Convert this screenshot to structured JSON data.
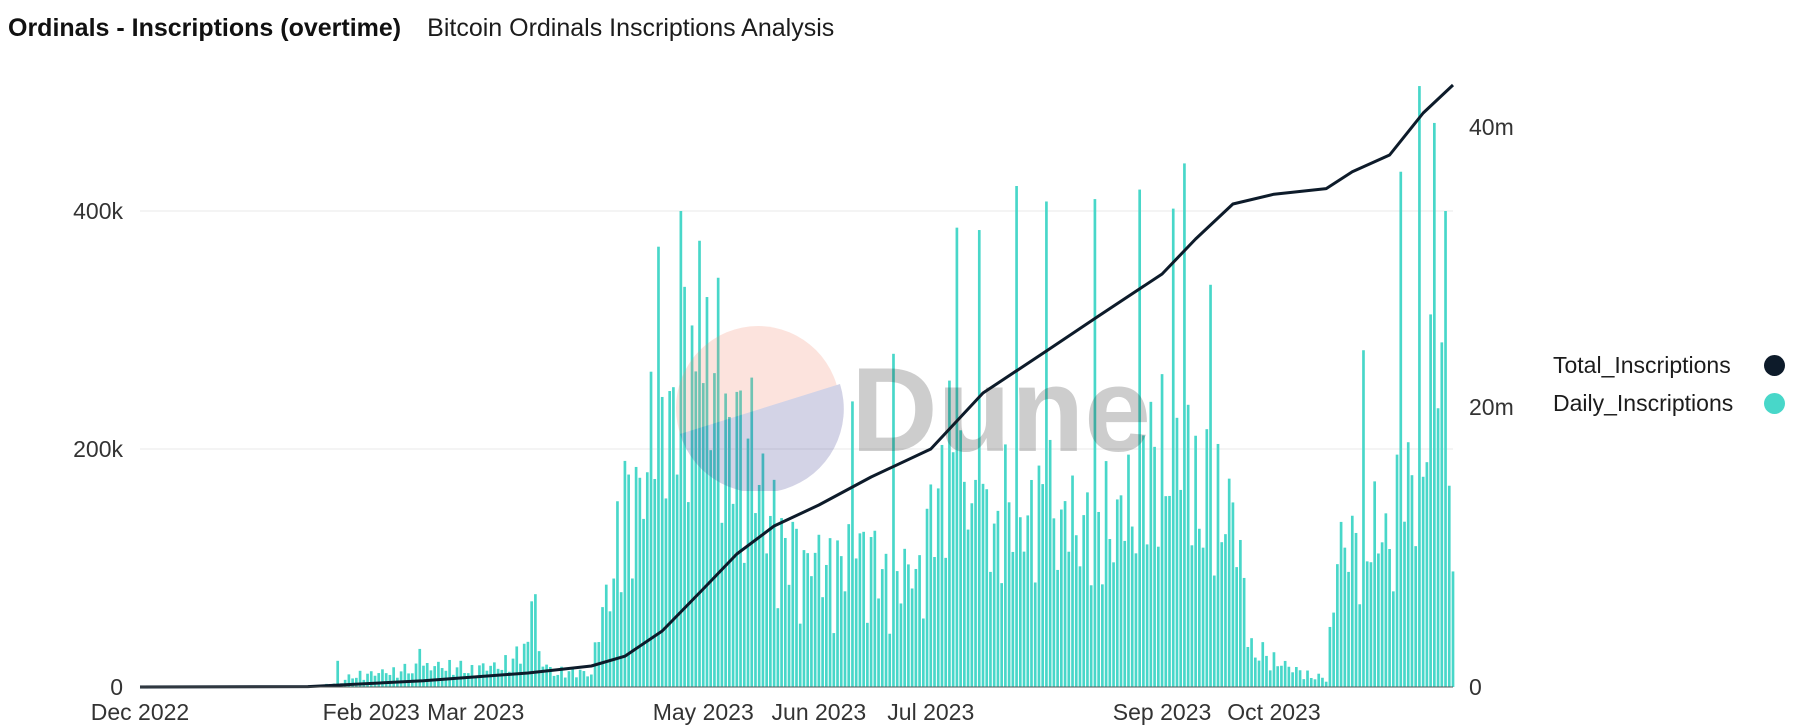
{
  "header": {
    "title": "Ordinals - Inscriptions (overtime)",
    "subtitle": "Bitcoin Ordinals Inscriptions Analysis"
  },
  "watermark": {
    "text": "Dune"
  },
  "colors": {
    "bars": "#48d7c9",
    "line": "#0d1b2a",
    "grid": "#e8e8e8",
    "axis_text": "#333333"
  },
  "legend": {
    "items": [
      {
        "label": "Total_Inscriptions",
        "color": "#0d1b2a"
      },
      {
        "label": "Daily_Inscriptions",
        "color": "#48d7c9"
      }
    ]
  },
  "chart_data": {
    "type": "bar",
    "x_range": [
      "2022-12-01",
      "2023-11-18"
    ],
    "x_ticks": [
      {
        "date": "2022-12-01",
        "label": "Dec 2022"
      },
      {
        "date": "2023-02-01",
        "label": "Feb 2023"
      },
      {
        "date": "2023-03-01",
        "label": "Mar 2023"
      },
      {
        "date": "2023-05-01",
        "label": "May 2023"
      },
      {
        "date": "2023-06-01",
        "label": "Jun 2023"
      },
      {
        "date": "2023-07-01",
        "label": "Jul 2023"
      },
      {
        "date": "2023-09-01",
        "label": "Sep 2023"
      },
      {
        "date": "2023-10-01",
        "label": "Oct 2023"
      }
    ],
    "y_left": {
      "ticks": [
        0,
        200000,
        400000
      ],
      "tick_labels": [
        "0",
        "200k",
        "400k"
      ],
      "range": [
        0,
        500000
      ]
    },
    "y_right": {
      "ticks": [
        0,
        20000000,
        40000000
      ],
      "tick_labels": [
        "0",
        "20m",
        "40m"
      ],
      "range": [
        0,
        42500000
      ]
    },
    "grid": true,
    "legend_position": "right",
    "series": [
      {
        "name": "Daily_Inscriptions",
        "type": "bar",
        "axis": "left",
        "keyframes": [
          [
            "2022-12-01",
            0
          ],
          [
            "2023-01-15",
            0
          ],
          [
            "2023-01-21",
            3000
          ],
          [
            "2023-01-28",
            12000
          ],
          [
            "2023-02-05",
            15000
          ],
          [
            "2023-02-20",
            22000
          ],
          [
            "2023-03-01",
            18000
          ],
          [
            "2023-03-10",
            25000
          ],
          [
            "2023-03-15",
            40000
          ],
          [
            "2023-03-22",
            15000
          ],
          [
            "2023-04-01",
            15000
          ],
          [
            "2023-04-05",
            100000
          ],
          [
            "2023-04-12",
            180000
          ],
          [
            "2023-04-20",
            300000
          ],
          [
            "2023-04-27",
            330000
          ],
          [
            "2023-05-04",
            310000
          ],
          [
            "2023-05-12",
            240000
          ],
          [
            "2023-05-20",
            160000
          ],
          [
            "2023-05-28",
            130000
          ],
          [
            "2023-06-05",
            120000
          ],
          [
            "2023-06-12",
            150000
          ],
          [
            "2023-06-20",
            110000
          ],
          [
            "2023-06-28",
            120000
          ],
          [
            "2023-07-05",
            240000
          ],
          [
            "2023-07-15",
            170000
          ],
          [
            "2023-07-25",
            180000
          ],
          [
            "2023-08-05",
            180000
          ],
          [
            "2023-08-15",
            160000
          ],
          [
            "2023-08-25",
            200000
          ],
          [
            "2023-09-05",
            260000
          ],
          [
            "2023-09-12",
            200000
          ],
          [
            "2023-09-20",
            180000
          ],
          [
            "2023-09-25",
            40000
          ],
          [
            "2023-10-05",
            20000
          ],
          [
            "2023-10-12",
            10000
          ],
          [
            "2023-10-15",
            10000
          ],
          [
            "2023-10-18",
            130000
          ],
          [
            "2023-10-24",
            160000
          ],
          [
            "2023-10-31",
            150000
          ],
          [
            "2023-11-06",
            220000
          ],
          [
            "2023-11-12",
            280000
          ],
          [
            "2023-11-17",
            330000
          ],
          [
            "2023-11-18",
            90000
          ]
        ],
        "peaks": [
          [
            "2023-01-23",
            22000
          ],
          [
            "2023-02-14",
            32000
          ],
          [
            "2023-03-16",
            72000
          ],
          [
            "2023-03-17",
            78000
          ],
          [
            "2023-04-10",
            190000
          ],
          [
            "2023-04-19",
            370000
          ],
          [
            "2023-04-25",
            400000
          ],
          [
            "2023-04-30",
            375000
          ],
          [
            "2023-05-14",
            260000
          ],
          [
            "2023-06-10",
            240000
          ],
          [
            "2023-06-21",
            280000
          ],
          [
            "2023-07-08",
            386000
          ],
          [
            "2023-07-14",
            384000
          ],
          [
            "2023-07-24",
            421000
          ],
          [
            "2023-08-01",
            408000
          ],
          [
            "2023-08-14",
            410000
          ],
          [
            "2023-08-26",
            418000
          ],
          [
            "2023-09-04",
            402000
          ],
          [
            "2023-09-07",
            440000
          ],
          [
            "2023-09-14",
            338000
          ],
          [
            "2023-10-25",
            283000
          ],
          [
            "2023-11-04",
            433000
          ],
          [
            "2023-11-09",
            505000
          ],
          [
            "2023-11-13",
            474000
          ],
          [
            "2023-11-16",
            400000
          ]
        ]
      },
      {
        "name": "Total_Inscriptions",
        "type": "line",
        "axis": "right",
        "points": [
          [
            "2022-12-01",
            0
          ],
          [
            "2023-01-15",
            30000
          ],
          [
            "2023-02-15",
            450000
          ],
          [
            "2023-03-15",
            1000000
          ],
          [
            "2023-04-01",
            1500000
          ],
          [
            "2023-04-10",
            2200000
          ],
          [
            "2023-04-20",
            4000000
          ],
          [
            "2023-05-01",
            7000000
          ],
          [
            "2023-05-10",
            9500000
          ],
          [
            "2023-05-20",
            11500000
          ],
          [
            "2023-06-01",
            13000000
          ],
          [
            "2023-06-15",
            15000000
          ],
          [
            "2023-07-01",
            17000000
          ],
          [
            "2023-07-15",
            21000000
          ],
          [
            "2023-08-01",
            24000000
          ],
          [
            "2023-08-15",
            26500000
          ],
          [
            "2023-09-01",
            29500000
          ],
          [
            "2023-09-10",
            32000000
          ],
          [
            "2023-09-20",
            34500000
          ],
          [
            "2023-10-01",
            35200000
          ],
          [
            "2023-10-15",
            35600000
          ],
          [
            "2023-10-22",
            36800000
          ],
          [
            "2023-11-01",
            38000000
          ],
          [
            "2023-11-10",
            41000000
          ],
          [
            "2023-11-18",
            43000000
          ]
        ]
      }
    ]
  }
}
